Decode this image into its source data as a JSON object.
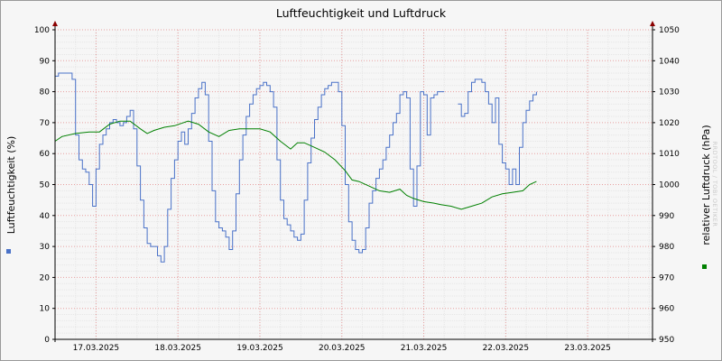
{
  "chart_data": {
    "type": "line",
    "title": "Luftfeuchtigkeit und Luftdruck",
    "watermark": "RRDTOOL / TOBI OETIKER",
    "grid": true,
    "x_ticks": [
      "17.03.2025",
      "18.03.2025",
      "19.03.2025",
      "20.03.2025",
      "21.03.2025",
      "22.03.2025",
      "23.03.2025"
    ],
    "x_range": [
      "2025-03-16 12:00",
      "2025-03-23 19:00"
    ],
    "y_left": {
      "label": "Luftfeuchtigkeit (%)",
      "ylim": [
        0,
        100
      ],
      "ticks": [
        "0",
        "10",
        "20",
        "30",
        "40",
        "50",
        "60",
        "70",
        "80",
        "90",
        "100"
      ]
    },
    "y_right": {
      "label": "relativer Luftdruck (hPa)",
      "ylim": [
        950,
        1050
      ],
      "ticks": [
        "950",
        "960",
        "970",
        "980",
        "990",
        "1000",
        "1010",
        "1020",
        "1030",
        "1040",
        "1050"
      ]
    },
    "colors": {
      "humidity": "#4a72c8",
      "pressure": "#008000",
      "grid_minor": "#e6e6e6",
      "grid_major": "#e8a0a0",
      "axis": "#000000",
      "arrow": "#8b0000"
    },
    "series": [
      {
        "axis": "left",
        "color": "#4a72c8",
        "points": [
          [
            "2025-03-16 12:00",
            85
          ],
          [
            "2025-03-16 13:00",
            86
          ],
          [
            "2025-03-16 16:00",
            86
          ],
          [
            "2025-03-16 17:00",
            84
          ],
          [
            "2025-03-16 18:00",
            66
          ],
          [
            "2025-03-16 19:00",
            58
          ],
          [
            "2025-03-16 20:00",
            55
          ],
          [
            "2025-03-16 21:00",
            54
          ],
          [
            "2025-03-16 22:00",
            50
          ],
          [
            "2025-03-16 23:00",
            43
          ],
          [
            "2025-03-17 00:00",
            55
          ],
          [
            "2025-03-17 01:00",
            63
          ],
          [
            "2025-03-17 02:00",
            66
          ],
          [
            "2025-03-17 03:00",
            68
          ],
          [
            "2025-03-17 04:00",
            70
          ],
          [
            "2025-03-17 05:00",
            71
          ],
          [
            "2025-03-17 06:00",
            70
          ],
          [
            "2025-03-17 07:00",
            69
          ],
          [
            "2025-03-17 08:00",
            70
          ],
          [
            "2025-03-17 09:00",
            72
          ],
          [
            "2025-03-17 10:00",
            74
          ],
          [
            "2025-03-17 11:00",
            68
          ],
          [
            "2025-03-17 12:00",
            56
          ],
          [
            "2025-03-17 13:00",
            45
          ],
          [
            "2025-03-17 14:00",
            36
          ],
          [
            "2025-03-17 15:00",
            31
          ],
          [
            "2025-03-17 16:00",
            30
          ],
          [
            "2025-03-17 17:00",
            30
          ],
          [
            "2025-03-17 18:00",
            27
          ],
          [
            "2025-03-17 19:00",
            25
          ],
          [
            "2025-03-17 20:00",
            30
          ],
          [
            "2025-03-17 21:00",
            42
          ],
          [
            "2025-03-17 22:00",
            52
          ],
          [
            "2025-03-17 23:00",
            58
          ],
          [
            "2025-03-18 00:00",
            64
          ],
          [
            "2025-03-18 01:00",
            67
          ],
          [
            "2025-03-18 02:00",
            63
          ],
          [
            "2025-03-18 03:00",
            68
          ],
          [
            "2025-03-18 04:00",
            73
          ],
          [
            "2025-03-18 05:00",
            78
          ],
          [
            "2025-03-18 06:00",
            81
          ],
          [
            "2025-03-18 07:00",
            83
          ],
          [
            "2025-03-18 08:00",
            79
          ],
          [
            "2025-03-18 09:00",
            64
          ],
          [
            "2025-03-18 10:00",
            48
          ],
          [
            "2025-03-18 11:00",
            38
          ],
          [
            "2025-03-18 12:00",
            36
          ],
          [
            "2025-03-18 13:00",
            35
          ],
          [
            "2025-03-18 14:00",
            33
          ],
          [
            "2025-03-18 15:00",
            29
          ],
          [
            "2025-03-18 16:00",
            35
          ],
          [
            "2025-03-18 17:00",
            47
          ],
          [
            "2025-03-18 18:00",
            58
          ],
          [
            "2025-03-18 19:00",
            66
          ],
          [
            "2025-03-18 20:00",
            72
          ],
          [
            "2025-03-18 21:00",
            76
          ],
          [
            "2025-03-18 22:00",
            79
          ],
          [
            "2025-03-18 23:00",
            81
          ],
          [
            "2025-03-19 00:00",
            82
          ],
          [
            "2025-03-19 01:00",
            83
          ],
          [
            "2025-03-19 02:00",
            82
          ],
          [
            "2025-03-19 03:00",
            80
          ],
          [
            "2025-03-19 04:00",
            75
          ],
          [
            "2025-03-19 05:00",
            58
          ],
          [
            "2025-03-19 06:00",
            45
          ],
          [
            "2025-03-19 07:00",
            39
          ],
          [
            "2025-03-19 08:00",
            37
          ],
          [
            "2025-03-19 09:00",
            35
          ],
          [
            "2025-03-19 10:00",
            33
          ],
          [
            "2025-03-19 11:00",
            32
          ],
          [
            "2025-03-19 12:00",
            34
          ],
          [
            "2025-03-19 13:00",
            45
          ],
          [
            "2025-03-19 14:00",
            57
          ],
          [
            "2025-03-19 15:00",
            65
          ],
          [
            "2025-03-19 16:00",
            71
          ],
          [
            "2025-03-19 17:00",
            75
          ],
          [
            "2025-03-19 18:00",
            79
          ],
          [
            "2025-03-19 19:00",
            81
          ],
          [
            "2025-03-19 20:00",
            82
          ],
          [
            "2025-03-19 21:00",
            83
          ],
          [
            "2025-03-19 22:00",
            83
          ],
          [
            "2025-03-19 23:00",
            80
          ],
          [
            "2025-03-20 00:00",
            69
          ],
          [
            "2025-03-20 01:00",
            50
          ],
          [
            "2025-03-20 02:00",
            38
          ],
          [
            "2025-03-20 03:00",
            32
          ],
          [
            "2025-03-20 04:00",
            29
          ],
          [
            "2025-03-20 05:00",
            28
          ],
          [
            "2025-03-20 06:00",
            29
          ],
          [
            "2025-03-20 07:00",
            36
          ],
          [
            "2025-03-20 08:00",
            44
          ],
          [
            "2025-03-20 09:00",
            48
          ],
          [
            "2025-03-20 10:00",
            52
          ],
          [
            "2025-03-20 11:00",
            55
          ],
          [
            "2025-03-20 12:00",
            58
          ],
          [
            "2025-03-20 13:00",
            62
          ],
          [
            "2025-03-20 14:00",
            66
          ],
          [
            "2025-03-20 15:00",
            70
          ],
          [
            "2025-03-20 16:00",
            73
          ],
          [
            "2025-03-20 17:00",
            79
          ],
          [
            "2025-03-20 18:00",
            80
          ],
          [
            "2025-03-20 19:00",
            78
          ],
          [
            "2025-03-20 20:00",
            55
          ],
          [
            "2025-03-20 21:00",
            43
          ],
          [
            "2025-03-20 22:00",
            56
          ],
          [
            "2025-03-20 23:00",
            80
          ],
          [
            "2025-03-21 00:00",
            79
          ],
          [
            "2025-03-21 01:00",
            66
          ],
          [
            "2025-03-21 02:00",
            78
          ],
          [
            "2025-03-21 03:00",
            79
          ],
          [
            "2025-03-21 04:00",
            80
          ],
          [
            "2025-03-21 05:00",
            80
          ],
          [
            "2025-03-21 06:00",
            80
          ],
          [
            "2025-03-21 09:00",
            null
          ],
          [
            "2025-03-21 10:00",
            76
          ],
          [
            "2025-03-21 11:00",
            72
          ],
          [
            "2025-03-21 12:00",
            73
          ],
          [
            "2025-03-21 13:00",
            80
          ],
          [
            "2025-03-21 14:00",
            83
          ],
          [
            "2025-03-21 15:00",
            84
          ],
          [
            "2025-03-21 16:00",
            84
          ],
          [
            "2025-03-21 17:00",
            83
          ],
          [
            "2025-03-21 18:00",
            80
          ],
          [
            "2025-03-21 19:00",
            76
          ],
          [
            "2025-03-21 20:00",
            70
          ],
          [
            "2025-03-21 21:00",
            78
          ],
          [
            "2025-03-21 22:00",
            63
          ],
          [
            "2025-03-21 23:00",
            57
          ],
          [
            "2025-03-22 00:00",
            55
          ],
          [
            "2025-03-22 01:00",
            50
          ],
          [
            "2025-03-22 02:00",
            55
          ],
          [
            "2025-03-22 03:00",
            50
          ],
          [
            "2025-03-22 04:00",
            62
          ],
          [
            "2025-03-22 05:00",
            70
          ],
          [
            "2025-03-22 06:00",
            74
          ],
          [
            "2025-03-22 07:00",
            77
          ],
          [
            "2025-03-22 08:00",
            79
          ],
          [
            "2025-03-22 09:00",
            80
          ]
        ]
      },
      {
        "axis": "right",
        "color": "#008000",
        "points": [
          [
            "2025-03-16 12:00",
            1014
          ],
          [
            "2025-03-16 14:00",
            1015.5
          ],
          [
            "2025-03-16 18:00",
            1016.5
          ],
          [
            "2025-03-16 22:00",
            1017
          ],
          [
            "2025-03-17 01:00",
            1017
          ],
          [
            "2025-03-17 04:00",
            1019.5
          ],
          [
            "2025-03-17 07:00",
            1020.5
          ],
          [
            "2025-03-17 10:00",
            1020.5
          ],
          [
            "2025-03-17 13:00",
            1018
          ],
          [
            "2025-03-17 15:00",
            1016.5
          ],
          [
            "2025-03-17 17:00",
            1017.5
          ],
          [
            "2025-03-17 20:00",
            1018.5
          ],
          [
            "2025-03-17 23:00",
            1019
          ],
          [
            "2025-03-18 03:00",
            1020.5
          ],
          [
            "2025-03-18 06:00",
            1019.5
          ],
          [
            "2025-03-18 09:00",
            1017
          ],
          [
            "2025-03-18 12:00",
            1015.5
          ],
          [
            "2025-03-18 15:00",
            1017.5
          ],
          [
            "2025-03-18 18:00",
            1018
          ],
          [
            "2025-03-18 21:00",
            1018
          ],
          [
            "2025-03-19 00:00",
            1018
          ],
          [
            "2025-03-19 03:00",
            1017
          ],
          [
            "2025-03-19 06:00",
            1014
          ],
          [
            "2025-03-19 09:00",
            1011.5
          ],
          [
            "2025-03-19 11:00",
            1013.5
          ],
          [
            "2025-03-19 13:00",
            1013.5
          ],
          [
            "2025-03-19 16:00",
            1012
          ],
          [
            "2025-03-19 19:00",
            1010.5
          ],
          [
            "2025-03-19 22:00",
            1008
          ],
          [
            "2025-03-20 01:00",
            1004.5
          ],
          [
            "2025-03-20 03:00",
            1001.5
          ],
          [
            "2025-03-20 05:00",
            1001
          ],
          [
            "2025-03-20 08:00",
            999.5
          ],
          [
            "2025-03-20 11:00",
            998
          ],
          [
            "2025-03-20 14:00",
            997.5
          ],
          [
            "2025-03-20 17:00",
            998.5
          ],
          [
            "2025-03-20 19:00",
            996.5
          ],
          [
            "2025-03-20 21:00",
            995.5
          ],
          [
            "2025-03-21 00:00",
            994.5
          ],
          [
            "2025-03-21 03:00",
            994
          ],
          [
            "2025-03-21 05:00",
            993.5
          ],
          [
            "2025-03-21 08:00",
            993
          ],
          [
            "2025-03-21 11:00",
            992
          ],
          [
            "2025-03-21 14:00",
            993
          ],
          [
            "2025-03-21 17:00",
            994
          ],
          [
            "2025-03-21 20:00",
            996
          ],
          [
            "2025-03-21 23:00",
            997
          ],
          [
            "2025-03-22 02:00",
            997.5
          ],
          [
            "2025-03-22 05:00",
            998
          ],
          [
            "2025-03-22 07:00",
            1000
          ],
          [
            "2025-03-22 09:00",
            1001
          ]
        ]
      }
    ]
  }
}
